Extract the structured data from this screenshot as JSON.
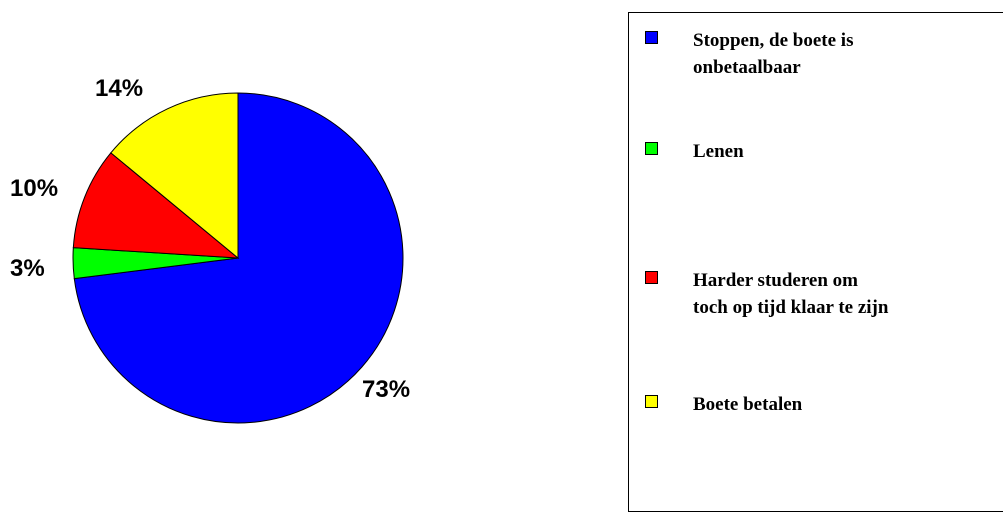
{
  "chart_data": {
    "type": "pie",
    "title": "",
    "slices": [
      {
        "label": "Stoppen, de boete is onbetaalbaar",
        "legend_text": "Stoppen, de boete is\nonbetaalbaar",
        "value": 73,
        "display": "73%",
        "color": "#0000ff"
      },
      {
        "label": "Lenen",
        "legend_text": " Lenen",
        "value": 3,
        "display": "3%",
        "color": "#00ff00"
      },
      {
        "label": "Harder studeren om toch op tijd klaar te zijn",
        "legend_text": "Harder studeren om\ntoch op tijd klaar te zijn",
        "value": 10,
        "display": "10%",
        "color": "#ff0000"
      },
      {
        "label": "Boete betalen",
        "legend_text": "Boete betalen",
        "value": 14,
        "display": "14%",
        "color": "#ffff00"
      }
    ],
    "start_angle_deg": 0,
    "direction": "clockwise",
    "legend_placement": "right"
  }
}
